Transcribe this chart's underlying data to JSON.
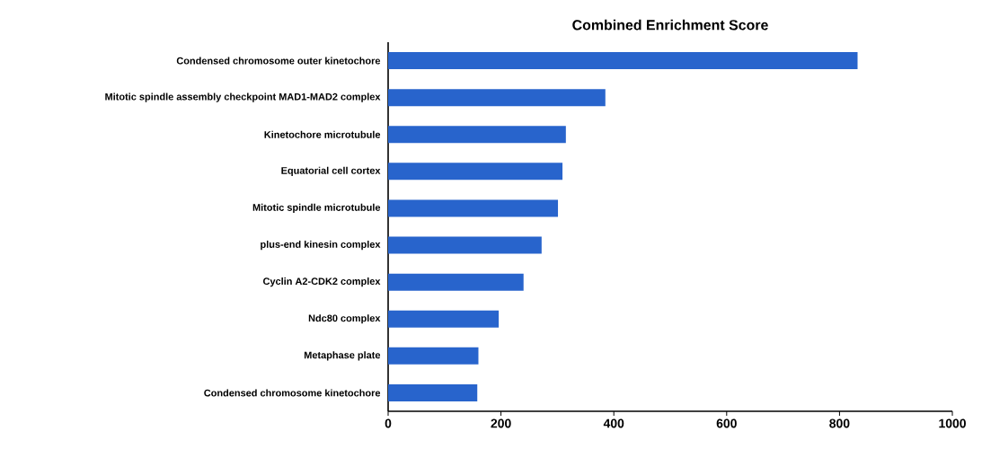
{
  "chart_data": {
    "type": "bar",
    "orientation": "horizontal",
    "title": "Combined Enrichment Score",
    "categories": [
      "Condensed chromosome outer kinetochore",
      "Mitotic spindle assembly checkpoint MAD1-MAD2 complex",
      "Kinetochore microtubule",
      "Equatorial cell cortex",
      "Mitotic spindle microtubule",
      "plus-end kinesin complex",
      "Cyclin A2-CDK2 complex",
      "Ndc80 complex",
      "Metaphase plate",
      "Condensed chromosome kinetochore"
    ],
    "values": [
      832,
      385,
      315,
      309,
      301,
      272,
      240,
      196,
      160,
      158
    ],
    "color": "#2864cc",
    "xlim": [
      0,
      1000
    ],
    "xticks": [
      0,
      200,
      400,
      600,
      800,
      1000
    ],
    "grid": false,
    "legend": false
  }
}
